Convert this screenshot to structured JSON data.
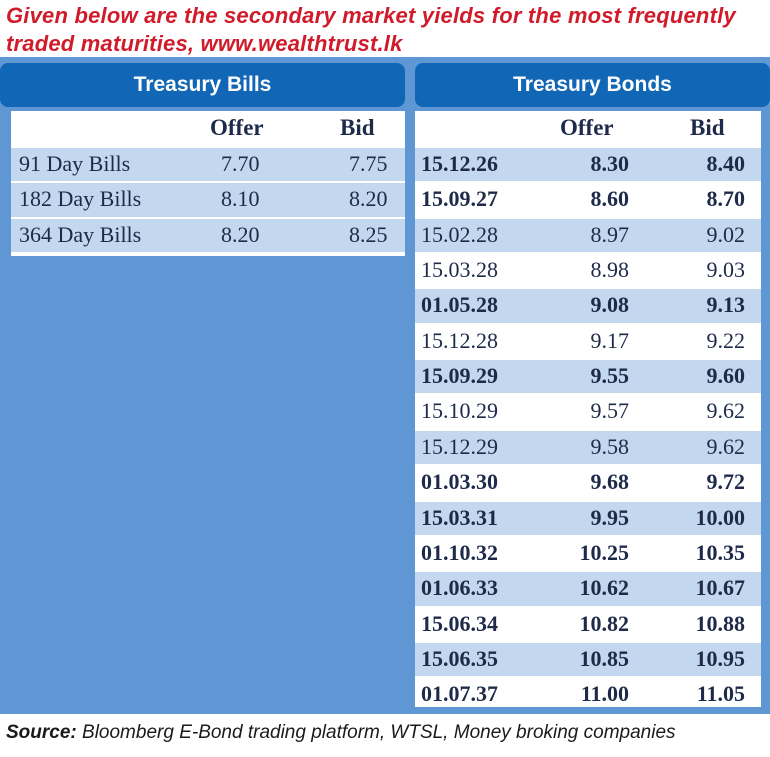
{
  "headline": {
    "line1": "Given below are the secondary market yields for the most frequently",
    "line2": "traded maturities, www.wealthtrust.lk"
  },
  "treasury_bills": {
    "title": "Treasury Bills",
    "columns": [
      "",
      "Offer",
      "Bid"
    ],
    "rows": [
      {
        "name": "91 Day Bills",
        "offer": "7.70",
        "bid": "7.75"
      },
      {
        "name": "182 Day Bills",
        "offer": "8.10",
        "bid": "8.20"
      },
      {
        "name": "364 Day Bills",
        "offer": "8.20",
        "bid": "8.25"
      }
    ]
  },
  "treasury_bonds": {
    "title": "Treasury Bonds",
    "columns": [
      "",
      "Offer",
      "Bid"
    ],
    "rows": [
      {
        "maturity": "15.12.26",
        "offer": "8.30",
        "bid": "8.40",
        "bold": true
      },
      {
        "maturity": "15.09.27",
        "offer": "8.60",
        "bid": "8.70",
        "bold": true
      },
      {
        "maturity": "15.02.28",
        "offer": "8.97",
        "bid": "9.02",
        "bold": false
      },
      {
        "maturity": "15.03.28",
        "offer": "8.98",
        "bid": "9.03",
        "bold": false
      },
      {
        "maturity": "01.05.28",
        "offer": "9.08",
        "bid": "9.13",
        "bold": true
      },
      {
        "maturity": "15.12.28",
        "offer": "9.17",
        "bid": "9.22",
        "bold": false
      },
      {
        "maturity": "15.09.29",
        "offer": "9.55",
        "bid": "9.60",
        "bold": true
      },
      {
        "maturity": "15.10.29",
        "offer": "9.57",
        "bid": "9.62",
        "bold": false
      },
      {
        "maturity": "15.12.29",
        "offer": "9.58",
        "bid": "9.62",
        "bold": false
      },
      {
        "maturity": "01.03.30",
        "offer": "9.68",
        "bid": "9.72",
        "bold": true
      },
      {
        "maturity": "15.03.31",
        "offer": "9.95",
        "bid": "10.00",
        "bold": true
      },
      {
        "maturity": "01.10.32",
        "offer": "10.25",
        "bid": "10.35",
        "bold": true
      },
      {
        "maturity": "01.06.33",
        "offer": "10.62",
        "bid": "10.67",
        "bold": true
      },
      {
        "maturity": "15.06.34",
        "offer": "10.82",
        "bid": "10.88",
        "bold": true
      },
      {
        "maturity": "15.06.35",
        "offer": "10.85",
        "bid": "10.95",
        "bold": true
      },
      {
        "maturity": "01.07.37",
        "offer": "11.00",
        "bid": "11.05",
        "bold": true
      }
    ]
  },
  "source": {
    "label": "Source:",
    "text": " Bloomberg E-Bond trading platform, WTSL, Money broking companies"
  },
  "colors": {
    "headline": "#d01b2a",
    "header_bg": "#1266b6",
    "frame_bg": "#5e97d3",
    "row_band": "#c3d7ee",
    "text": "#1e2a4a"
  }
}
